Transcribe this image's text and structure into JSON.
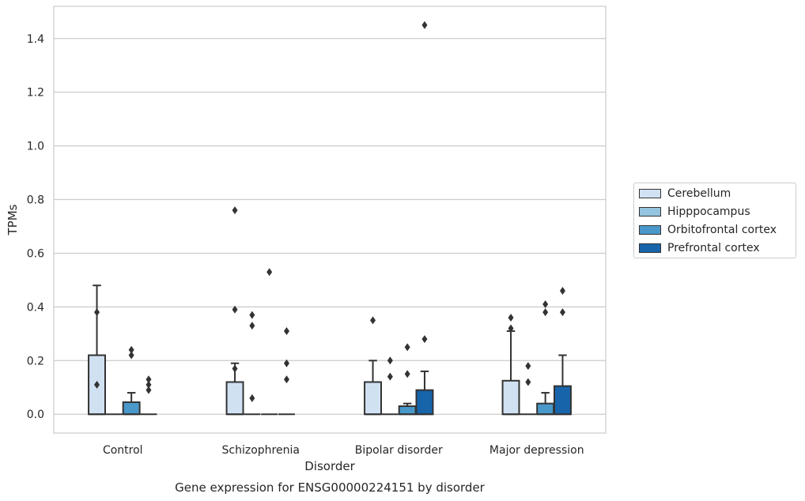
{
  "chart_data": {
    "type": "box",
    "title": "Gene expression for ENSG00000224151 by disorder",
    "xlabel": "Disorder",
    "ylabel": "TPMs",
    "ylim": [
      -0.07,
      1.52
    ],
    "yticks": [
      "0.0",
      "0.2",
      "0.4",
      "0.6",
      "0.8",
      "1.0",
      "1.2",
      "1.4"
    ],
    "grid": "horizontal",
    "legend_position": "right",
    "categories": [
      "Control",
      "Schizophrenia",
      "Bipolar disorder",
      "Major depression"
    ],
    "series": [
      {
        "name": "Cerebellum",
        "color": "#d0e1f2",
        "boxes": [
          {
            "q1": 0.0,
            "median": 0.0,
            "q3": 0.22,
            "whisker_low": 0.0,
            "whisker_high": 0.48,
            "outliers": [
              0.38,
              0.11
            ]
          },
          {
            "q1": 0.0,
            "median": 0.0,
            "q3": 0.12,
            "whisker_low": 0.0,
            "whisker_high": 0.19,
            "outliers": [
              0.76,
              0.39,
              0.17
            ]
          },
          {
            "q1": 0.0,
            "median": 0.0,
            "q3": 0.12,
            "whisker_low": 0.0,
            "whisker_high": 0.2,
            "outliers": [
              0.35
            ]
          },
          {
            "q1": 0.0,
            "median": 0.0,
            "q3": 0.125,
            "whisker_low": 0.0,
            "whisker_high": 0.31,
            "outliers": [
              0.36,
              0.32
            ]
          }
        ]
      },
      {
        "name": "Hipppocampus",
        "color": "#94c4df",
        "boxes": [
          {
            "q1": 0.0,
            "median": 0.0,
            "q3": 0.0,
            "whisker_low": 0.0,
            "whisker_high": 0.0,
            "outliers": []
          },
          {
            "q1": 0.0,
            "median": 0.0,
            "q3": 0.0,
            "whisker_low": 0.0,
            "whisker_high": 0.0,
            "outliers": [
              0.37,
              0.33,
              0.06
            ]
          },
          {
            "q1": 0.0,
            "median": 0.0,
            "q3": 0.0,
            "whisker_low": 0.0,
            "whisker_high": 0.0,
            "outliers": [
              0.2,
              0.14
            ]
          },
          {
            "q1": 0.0,
            "median": 0.0,
            "q3": 0.0,
            "whisker_low": 0.0,
            "whisker_high": 0.0,
            "outliers": [
              0.18,
              0.12
            ]
          }
        ]
      },
      {
        "name": "Orbitofrontal cortex",
        "color": "#4a98c9",
        "boxes": [
          {
            "q1": 0.0,
            "median": 0.0,
            "q3": 0.045,
            "whisker_low": 0.0,
            "whisker_high": 0.08,
            "outliers": [
              0.24,
              0.22
            ]
          },
          {
            "q1": 0.0,
            "median": 0.0,
            "q3": 0.0,
            "whisker_low": 0.0,
            "whisker_high": 0.0,
            "outliers": [
              0.53
            ]
          },
          {
            "q1": 0.0,
            "median": 0.0,
            "q3": 0.03,
            "whisker_low": 0.0,
            "whisker_high": 0.04,
            "outliers": [
              0.25,
              0.15
            ]
          },
          {
            "q1": 0.0,
            "median": 0.0,
            "q3": 0.04,
            "whisker_low": 0.0,
            "whisker_high": 0.08,
            "outliers": [
              0.41,
              0.38
            ]
          }
        ]
      },
      {
        "name": "Prefrontal cortex",
        "color": "#1764ab",
        "boxes": [
          {
            "q1": 0.0,
            "median": 0.0,
            "q3": 0.0,
            "whisker_low": 0.0,
            "whisker_high": 0.0,
            "outliers": [
              0.13,
              0.11,
              0.09
            ]
          },
          {
            "q1": 0.0,
            "median": 0.0,
            "q3": 0.0,
            "whisker_low": 0.0,
            "whisker_high": 0.0,
            "outliers": [
              0.31,
              0.19,
              0.13
            ]
          },
          {
            "q1": 0.0,
            "median": 0.0,
            "q3": 0.09,
            "whisker_low": 0.0,
            "whisker_high": 0.16,
            "outliers": [
              1.45,
              0.28
            ]
          },
          {
            "q1": 0.0,
            "median": 0.0,
            "q3": 0.105,
            "whisker_low": 0.0,
            "whisker_high": 0.22,
            "outliers": [
              0.46,
              0.38
            ]
          }
        ]
      }
    ]
  }
}
